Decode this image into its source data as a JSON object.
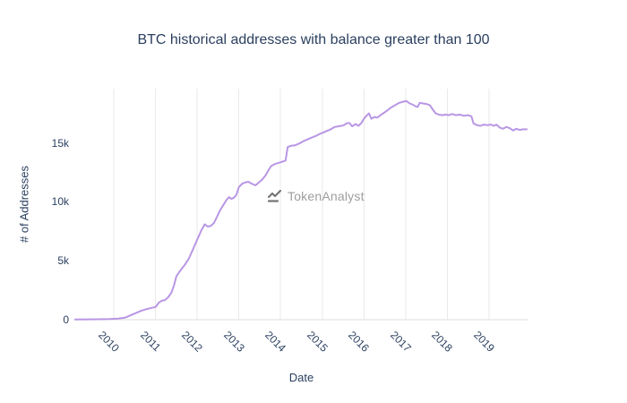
{
  "watermark": {
    "text": "TokenAnalyst",
    "icon": "trend-line-icon"
  },
  "colors": {
    "line": "#b996e4",
    "text": "#2a3f5f",
    "grid": "#e9e9e9",
    "zero_line": "#dedede",
    "watermark_icon": "#5f5f5f",
    "watermark_text": "#8c8c8c",
    "background": "#ffffff"
  },
  "chart_data": {
    "type": "line",
    "title": "BTC historical addresses with balance greater than 100",
    "xlabel": "Date",
    "ylabel": "# of Addresses",
    "xlim": [
      2009.05,
      2019.95
    ],
    "ylim": [
      0,
      19600
    ],
    "grid": "vertical-only",
    "legend": "none",
    "x_ticks": [
      {
        "value": 2010,
        "label": "2010"
      },
      {
        "value": 2011,
        "label": "2011"
      },
      {
        "value": 2012,
        "label": "2012"
      },
      {
        "value": 2013,
        "label": "2013"
      },
      {
        "value": 2014,
        "label": "2014"
      },
      {
        "value": 2015,
        "label": "2015"
      },
      {
        "value": 2016,
        "label": "2016"
      },
      {
        "value": 2017,
        "label": "2017"
      },
      {
        "value": 2018,
        "label": "2018"
      },
      {
        "value": 2019,
        "label": "2019"
      }
    ],
    "y_ticks": [
      {
        "value": 0,
        "label": "0"
      },
      {
        "value": 5000,
        "label": "5k"
      },
      {
        "value": 10000,
        "label": "10k"
      },
      {
        "value": 15000,
        "label": "15k"
      }
    ],
    "series": [
      {
        "points": [
          [
            2009.07,
            20
          ],
          [
            2009.3,
            30
          ],
          [
            2009.6,
            40
          ],
          [
            2009.9,
            60
          ],
          [
            2010.1,
            100
          ],
          [
            2010.25,
            160
          ],
          [
            2010.35,
            300
          ],
          [
            2010.45,
            450
          ],
          [
            2010.55,
            600
          ],
          [
            2010.65,
            750
          ],
          [
            2010.78,
            900
          ],
          [
            2010.9,
            1000
          ],
          [
            2011.0,
            1080
          ],
          [
            2011.08,
            1450
          ],
          [
            2011.15,
            1620
          ],
          [
            2011.22,
            1650
          ],
          [
            2011.3,
            1900
          ],
          [
            2011.38,
            2300
          ],
          [
            2011.44,
            2900
          ],
          [
            2011.5,
            3700
          ],
          [
            2011.6,
            4200
          ],
          [
            2011.7,
            4650
          ],
          [
            2011.8,
            5200
          ],
          [
            2011.9,
            6000
          ],
          [
            2012.0,
            6800
          ],
          [
            2012.1,
            7600
          ],
          [
            2012.18,
            8100
          ],
          [
            2012.25,
            7900
          ],
          [
            2012.32,
            7950
          ],
          [
            2012.4,
            8200
          ],
          [
            2012.47,
            8700
          ],
          [
            2012.55,
            9300
          ],
          [
            2012.62,
            9700
          ],
          [
            2012.7,
            10150
          ],
          [
            2012.76,
            10400
          ],
          [
            2012.82,
            10250
          ],
          [
            2012.88,
            10350
          ],
          [
            2012.94,
            10600
          ],
          [
            2013.0,
            11250
          ],
          [
            2013.08,
            11550
          ],
          [
            2013.16,
            11650
          ],
          [
            2013.23,
            11700
          ],
          [
            2013.3,
            11550
          ],
          [
            2013.4,
            11400
          ],
          [
            2013.48,
            11650
          ],
          [
            2013.56,
            11900
          ],
          [
            2013.64,
            12250
          ],
          [
            2013.72,
            12750
          ],
          [
            2013.78,
            13050
          ],
          [
            2013.86,
            13200
          ],
          [
            2013.95,
            13300
          ],
          [
            2014.04,
            13400
          ],
          [
            2014.12,
            13500
          ],
          [
            2014.17,
            14650
          ],
          [
            2014.25,
            14750
          ],
          [
            2014.35,
            14800
          ],
          [
            2014.45,
            14950
          ],
          [
            2014.55,
            15150
          ],
          [
            2014.65,
            15300
          ],
          [
            2014.75,
            15450
          ],
          [
            2014.85,
            15600
          ],
          [
            2014.93,
            15750
          ],
          [
            2015.0,
            15850
          ],
          [
            2015.1,
            16000
          ],
          [
            2015.2,
            16150
          ],
          [
            2015.3,
            16350
          ],
          [
            2015.38,
            16400
          ],
          [
            2015.46,
            16450
          ],
          [
            2015.52,
            16500
          ],
          [
            2015.58,
            16650
          ],
          [
            2015.65,
            16700
          ],
          [
            2015.72,
            16400
          ],
          [
            2015.8,
            16600
          ],
          [
            2015.87,
            16450
          ],
          [
            2015.94,
            16700
          ],
          [
            2016.0,
            17050
          ],
          [
            2016.06,
            17300
          ],
          [
            2016.12,
            17500
          ],
          [
            2016.18,
            17050
          ],
          [
            2016.25,
            17200
          ],
          [
            2016.32,
            17150
          ],
          [
            2016.4,
            17350
          ],
          [
            2016.48,
            17550
          ],
          [
            2016.56,
            17750
          ],
          [
            2016.65,
            18000
          ],
          [
            2016.75,
            18200
          ],
          [
            2016.85,
            18400
          ],
          [
            2016.95,
            18500
          ],
          [
            2017.02,
            18550
          ],
          [
            2017.1,
            18350
          ],
          [
            2017.17,
            18250
          ],
          [
            2017.24,
            18100
          ],
          [
            2017.29,
            18050
          ],
          [
            2017.34,
            18400
          ],
          [
            2017.42,
            18350
          ],
          [
            2017.5,
            18300
          ],
          [
            2017.58,
            18200
          ],
          [
            2017.65,
            17850
          ],
          [
            2017.72,
            17500
          ],
          [
            2017.8,
            17400
          ],
          [
            2017.88,
            17350
          ],
          [
            2017.96,
            17400
          ],
          [
            2018.04,
            17350
          ],
          [
            2018.12,
            17450
          ],
          [
            2018.2,
            17350
          ],
          [
            2018.3,
            17400
          ],
          [
            2018.4,
            17300
          ],
          [
            2018.5,
            17350
          ],
          [
            2018.58,
            17250
          ],
          [
            2018.63,
            16650
          ],
          [
            2018.72,
            16500
          ],
          [
            2018.8,
            16450
          ],
          [
            2018.88,
            16550
          ],
          [
            2018.96,
            16500
          ],
          [
            2019.04,
            16550
          ],
          [
            2019.12,
            16450
          ],
          [
            2019.18,
            16550
          ],
          [
            2019.26,
            16300
          ],
          [
            2019.34,
            16200
          ],
          [
            2019.42,
            16350
          ],
          [
            2019.5,
            16250
          ],
          [
            2019.58,
            16050
          ],
          [
            2019.66,
            16200
          ],
          [
            2019.74,
            16100
          ],
          [
            2019.82,
            16150
          ],
          [
            2019.91,
            16150
          ]
        ]
      }
    ]
  }
}
